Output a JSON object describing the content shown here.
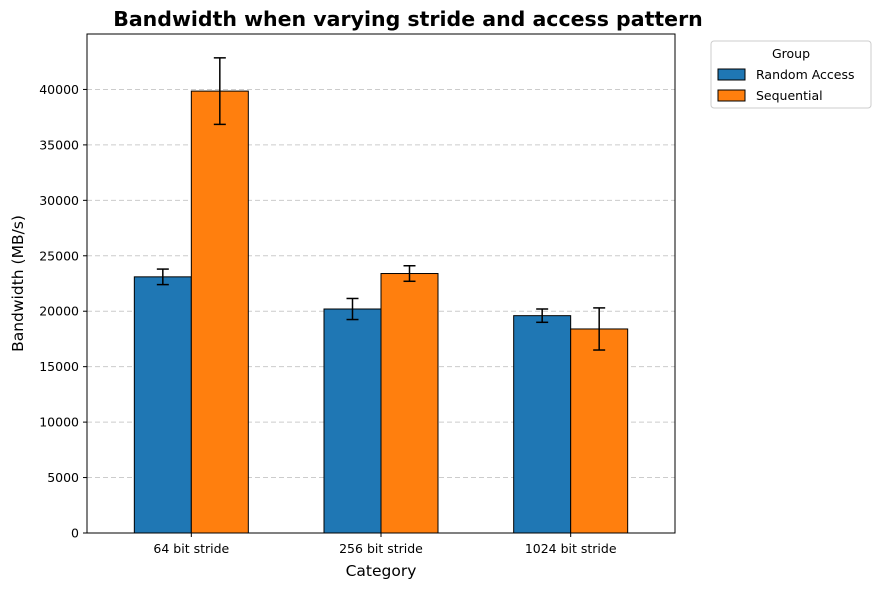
{
  "chart_data": {
    "type": "bar",
    "title": "Bandwidth when varying stride and access pattern",
    "xlabel": "Category",
    "ylabel": "Bandwidth (MB/s)",
    "categories": [
      "64 bit stride",
      "256 bit stride",
      "1024 bit stride"
    ],
    "series": [
      {
        "name": "Random Access",
        "color": "#1f77b4",
        "values": [
          23100,
          20200,
          19600
        ],
        "errors": [
          700,
          950,
          600
        ]
      },
      {
        "name": "Sequential",
        "color": "#ff7f0e",
        "values": [
          39850,
          23400,
          18400
        ],
        "errors": [
          3000,
          700,
          1900
        ]
      }
    ],
    "ylim": [
      0,
      45000
    ],
    "yticks": [
      0,
      5000,
      10000,
      15000,
      20000,
      25000,
      30000,
      35000,
      40000
    ],
    "grid": "y-dashed",
    "legend": {
      "title": "Group",
      "position": "outside-top-right"
    }
  }
}
